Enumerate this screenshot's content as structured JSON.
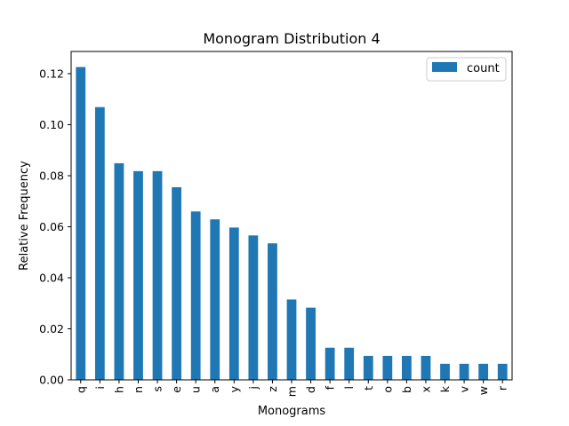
{
  "chart_data": {
    "type": "bar",
    "title": "Monogram Distribution 4",
    "xlabel": "Monograms",
    "ylabel": "Relative Frequency",
    "categories": [
      "q",
      "i",
      "h",
      "n",
      "s",
      "e",
      "u",
      "a",
      "y",
      "j",
      "z",
      "m",
      "d",
      "f",
      "l",
      "t",
      "o",
      "b",
      "x",
      "k",
      "v",
      "w",
      "r"
    ],
    "series": [
      {
        "name": "count",
        "color": "#1f77b4",
        "values": [
          0.1226,
          0.1069,
          0.0849,
          0.0818,
          0.0818,
          0.0755,
          0.066,
          0.0629,
          0.0597,
          0.0566,
          0.0535,
          0.0315,
          0.0283,
          0.0126,
          0.0126,
          0.0094,
          0.0094,
          0.0094,
          0.0094,
          0.0063,
          0.0063,
          0.0063,
          0.0063
        ]
      }
    ],
    "ylim": [
      0,
      0.1287
    ],
    "yticks": [
      "0.00",
      "0.02",
      "0.04",
      "0.06",
      "0.08",
      "0.10",
      "0.12"
    ],
    "grid": false,
    "legend_position": "top-right"
  }
}
